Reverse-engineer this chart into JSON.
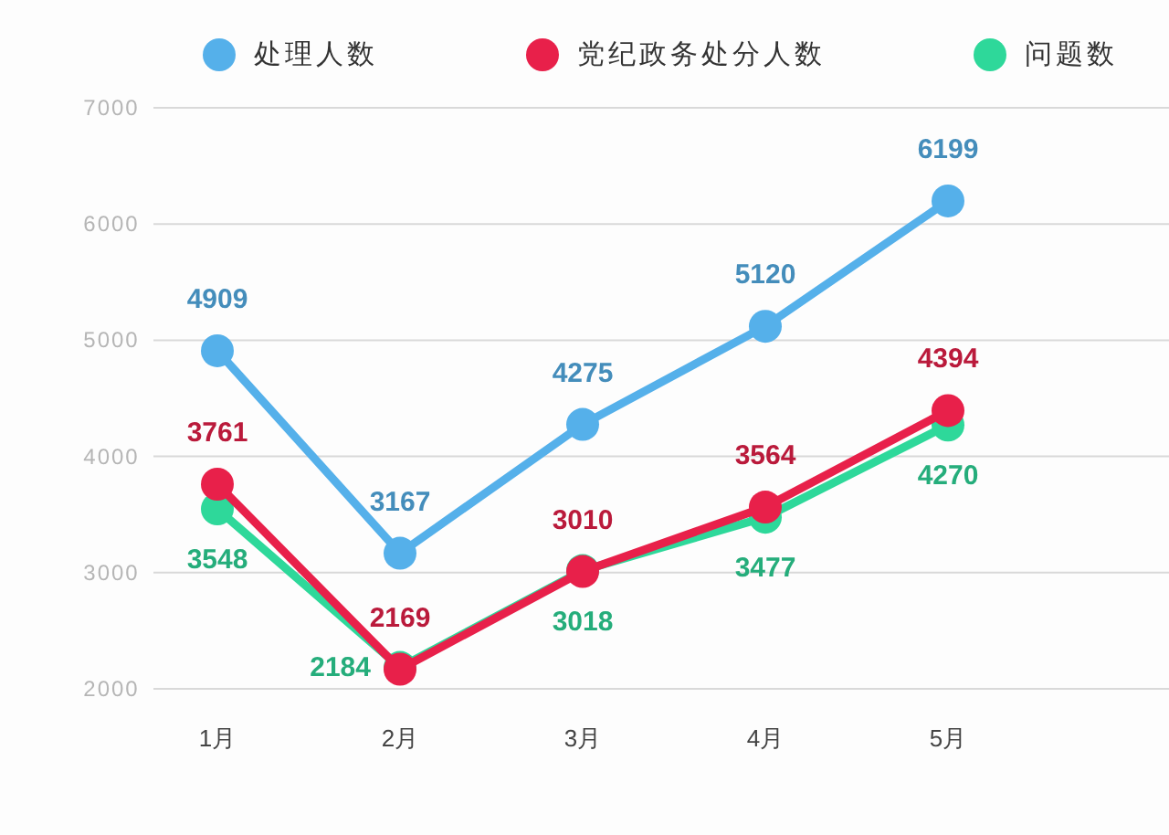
{
  "chart_data": {
    "type": "line",
    "categories": [
      "1月",
      "2月",
      "3月",
      "4月",
      "5月"
    ],
    "series": [
      {
        "name": "处理人数",
        "color": "#55b0ea",
        "values": [
          4909,
          3167,
          4275,
          5120,
          6199
        ]
      },
      {
        "name": "党纪政务处分人数",
        "color": "#e8204a",
        "values": [
          3761,
          2169,
          3010,
          3564,
          4394
        ]
      },
      {
        "name": "问题数",
        "color": "#2ed89a",
        "values": [
          3548,
          2184,
          3018,
          3477,
          4270
        ]
      }
    ],
    "ylim": [
      2000,
      7000
    ],
    "yticks": [
      2000,
      3000,
      4000,
      5000,
      6000,
      7000
    ],
    "grid": "y",
    "legend": "top",
    "marker": "circle",
    "line_style": "solid",
    "data_labels": true
  }
}
